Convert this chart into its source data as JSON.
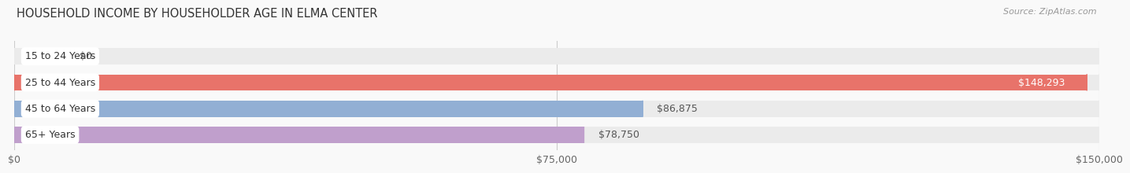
{
  "title": "HOUSEHOLD INCOME BY HOUSEHOLDER AGE IN ELMA CENTER",
  "source": "Source: ZipAtlas.com",
  "categories": [
    "15 to 24 Years",
    "25 to 44 Years",
    "45 to 64 Years",
    "65+ Years"
  ],
  "values": [
    0,
    148293,
    86875,
    78750
  ],
  "bar_colors": [
    "#f0c08a",
    "#e8736a",
    "#92afd4",
    "#c09fcc"
  ],
  "bar_bg_color": "#ebebeb",
  "xlim": [
    0,
    150000
  ],
  "xticks": [
    0,
    75000,
    150000
  ],
  "xtick_labels": [
    "$0",
    "$75,000",
    "$150,000"
  ],
  "title_fontsize": 10.5,
  "source_fontsize": 8,
  "bar_label_fontsize": 9,
  "tick_fontsize": 9,
  "background_color": "#f9f9f9",
  "bar_height": 0.62,
  "value_labels": [
    "$0",
    "$148,293",
    "$86,875",
    "$78,750"
  ]
}
